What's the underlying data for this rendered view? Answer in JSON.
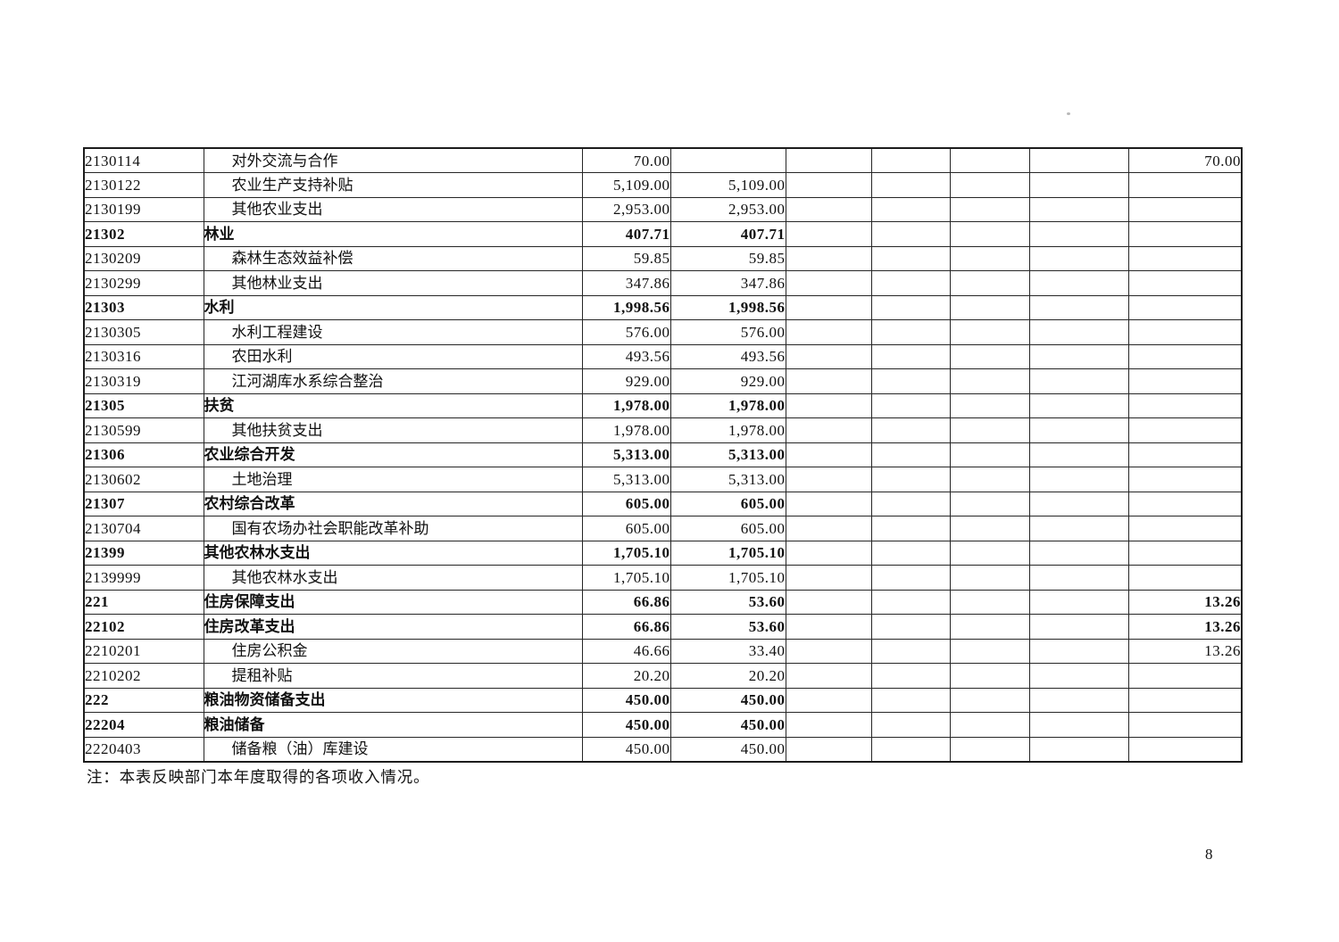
{
  "page": {
    "note": "注：本表反映部门本年度取得的各项收入情况。",
    "number": "8"
  },
  "table": {
    "rows": [
      {
        "code": "2130114",
        "name": "对外交流与合作",
        "values": [
          "70.00",
          "",
          "",
          "",
          "",
          "",
          "70.00"
        ],
        "bold": false,
        "indent": true
      },
      {
        "code": "2130122",
        "name": "农业生产支持补贴",
        "values": [
          "5,109.00",
          "5,109.00",
          "",
          "",
          "",
          "",
          ""
        ],
        "bold": false,
        "indent": true
      },
      {
        "code": "2130199",
        "name": "其他农业支出",
        "values": [
          "2,953.00",
          "2,953.00",
          "",
          "",
          "",
          "",
          ""
        ],
        "bold": false,
        "indent": true
      },
      {
        "code": "21302",
        "name": "林业",
        "values": [
          "407.71",
          "407.71",
          "",
          "",
          "",
          "",
          ""
        ],
        "bold": true,
        "indent": false
      },
      {
        "code": "2130209",
        "name": "森林生态效益补偿",
        "values": [
          "59.85",
          "59.85",
          "",
          "",
          "",
          "",
          ""
        ],
        "bold": false,
        "indent": true
      },
      {
        "code": "2130299",
        "name": "其他林业支出",
        "values": [
          "347.86",
          "347.86",
          "",
          "",
          "",
          "",
          ""
        ],
        "bold": false,
        "indent": true
      },
      {
        "code": "21303",
        "name": "水利",
        "values": [
          "1,998.56",
          "1,998.56",
          "",
          "",
          "",
          "",
          ""
        ],
        "bold": true,
        "indent": false
      },
      {
        "code": "2130305",
        "name": "水利工程建设",
        "values": [
          "576.00",
          "576.00",
          "",
          "",
          "",
          "",
          ""
        ],
        "bold": false,
        "indent": true
      },
      {
        "code": "2130316",
        "name": "农田水利",
        "values": [
          "493.56",
          "493.56",
          "",
          "",
          "",
          "",
          ""
        ],
        "bold": false,
        "indent": true
      },
      {
        "code": "2130319",
        "name": "江河湖库水系综合整治",
        "values": [
          "929.00",
          "929.00",
          "",
          "",
          "",
          "",
          ""
        ],
        "bold": false,
        "indent": true
      },
      {
        "code": "21305",
        "name": "扶贫",
        "values": [
          "1,978.00",
          "1,978.00",
          "",
          "",
          "",
          "",
          ""
        ],
        "bold": true,
        "indent": false
      },
      {
        "code": "2130599",
        "name": "其他扶贫支出",
        "values": [
          "1,978.00",
          "1,978.00",
          "",
          "",
          "",
          "",
          ""
        ],
        "bold": false,
        "indent": true
      },
      {
        "code": "21306",
        "name": "农业综合开发",
        "values": [
          "5,313.00",
          "5,313.00",
          "",
          "",
          "",
          "",
          ""
        ],
        "bold": true,
        "indent": false
      },
      {
        "code": "2130602",
        "name": "土地治理",
        "values": [
          "5,313.00",
          "5,313.00",
          "",
          "",
          "",
          "",
          ""
        ],
        "bold": false,
        "indent": true
      },
      {
        "code": "21307",
        "name": "农村综合改革",
        "values": [
          "605.00",
          "605.00",
          "",
          "",
          "",
          "",
          ""
        ],
        "bold": true,
        "indent": false
      },
      {
        "code": "2130704",
        "name": "国有农场办社会职能改革补助",
        "values": [
          "605.00",
          "605.00",
          "",
          "",
          "",
          "",
          ""
        ],
        "bold": false,
        "indent": true
      },
      {
        "code": "21399",
        "name": "其他农林水支出",
        "values": [
          "1,705.10",
          "1,705.10",
          "",
          "",
          "",
          "",
          ""
        ],
        "bold": true,
        "indent": false
      },
      {
        "code": "2139999",
        "name": "其他农林水支出",
        "values": [
          "1,705.10",
          "1,705.10",
          "",
          "",
          "",
          "",
          ""
        ],
        "bold": false,
        "indent": true
      },
      {
        "code": "221",
        "name": "住房保障支出",
        "values": [
          "66.86",
          "53.60",
          "",
          "",
          "",
          "",
          "13.26"
        ],
        "bold": true,
        "indent": false
      },
      {
        "code": "22102",
        "name": "住房改革支出",
        "values": [
          "66.86",
          "53.60",
          "",
          "",
          "",
          "",
          "13.26"
        ],
        "bold": true,
        "indent": false
      },
      {
        "code": "2210201",
        "name": "住房公积金",
        "values": [
          "46.66",
          "33.40",
          "",
          "",
          "",
          "",
          "13.26"
        ],
        "bold": false,
        "indent": true
      },
      {
        "code": "2210202",
        "name": "提租补贴",
        "values": [
          "20.20",
          "20.20",
          "",
          "",
          "",
          "",
          ""
        ],
        "bold": false,
        "indent": true
      },
      {
        "code": "222",
        "name": "粮油物资储备支出",
        "values": [
          "450.00",
          "450.00",
          "",
          "",
          "",
          "",
          ""
        ],
        "bold": true,
        "indent": false
      },
      {
        "code": "22204",
        "name": "粮油储备",
        "values": [
          "450.00",
          "450.00",
          "",
          "",
          "",
          "",
          ""
        ],
        "bold": true,
        "indent": false
      },
      {
        "code": "2220403",
        "name": "储备粮（油）库建设",
        "values": [
          "450.00",
          "450.00",
          "",
          "",
          "",
          "",
          ""
        ],
        "bold": false,
        "indent": true
      }
    ]
  }
}
